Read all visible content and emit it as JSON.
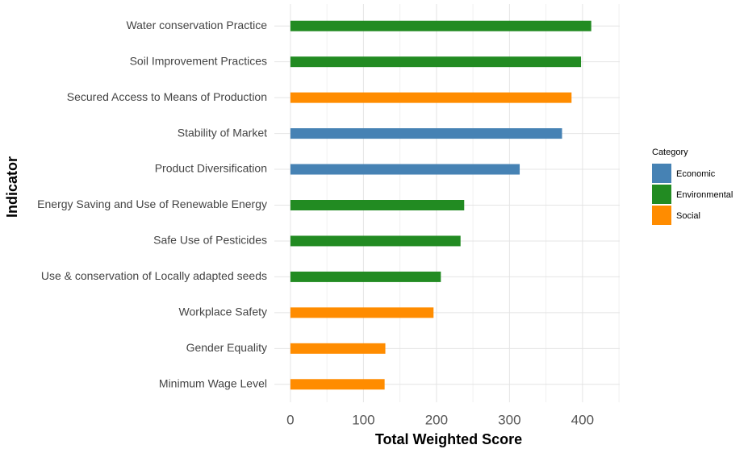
{
  "chart_data": {
    "type": "bar",
    "orientation": "horizontal",
    "x_label": "Total Weighted Score",
    "y_label": "Indicator",
    "categories": [
      "Water conservation Practice",
      "Soil Improvement Practices",
      "Secured Access to Means of Production",
      "Stability of Market",
      "Product Diversification",
      "Energy Saving and Use of Renewable Energy",
      "Safe Use of Pesticides",
      "Use & conservation of Locally adapted seeds",
      "Workplace Safety",
      "Gender Equality",
      "Minimum Wage Level"
    ],
    "series": [
      {
        "name": "Economic",
        "color": "#4682b4",
        "values": [
          null,
          null,
          null,
          372,
          314,
          null,
          null,
          null,
          null,
          null,
          null
        ]
      },
      {
        "name": "Environmental",
        "color": "#228b22",
        "values": [
          412,
          398,
          null,
          null,
          null,
          238,
          233,
          206,
          null,
          null,
          null
        ]
      },
      {
        "name": "Social",
        "color": "#ff8c00",
        "values": [
          null,
          null,
          385,
          null,
          null,
          null,
          null,
          null,
          196,
          130,
          129
        ]
      }
    ],
    "legend_title": "Category",
    "legend": "right",
    "xlim": [
      -22,
      451
    ],
    "xticks": [
      0,
      100,
      200,
      300,
      400
    ],
    "grid": true
  }
}
